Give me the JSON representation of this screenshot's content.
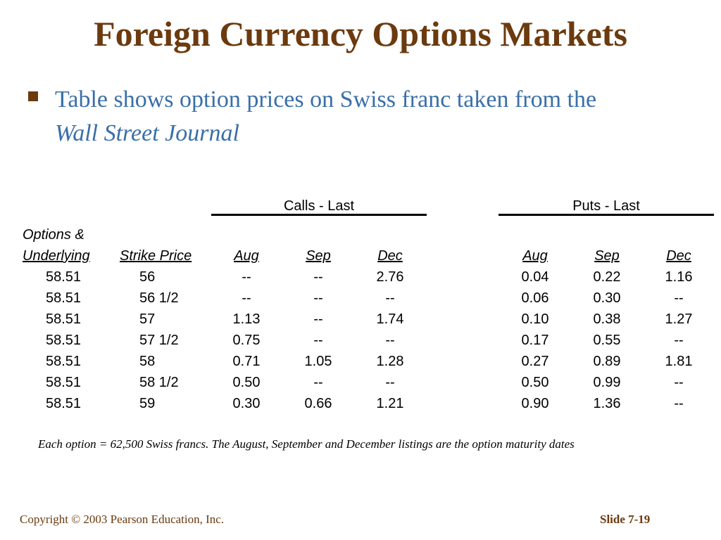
{
  "slide": {
    "title": "Foreign Currency Options Markets",
    "bullet_text": "Table shows option prices on Swiss franc taken from the",
    "bullet_text_italic": "Wall Street Journal"
  },
  "table": {
    "calls_group": "Calls - Last",
    "puts_group": "Puts - Last",
    "options_header_line1": "Options &",
    "options_header_line2": "Underlying",
    "strike_header": "Strike Price",
    "month_headers": [
      "Aug",
      "Sep",
      "Dec",
      "Aug",
      "Sep",
      "Dec"
    ],
    "rows": [
      [
        "58.51",
        "56",
        "--",
        "--",
        "2.76",
        "0.04",
        "0.22",
        "1.16"
      ],
      [
        "58.51",
        "56 1/2",
        "--",
        "--",
        "--",
        "0.06",
        "0.30",
        "--"
      ],
      [
        "58.51",
        "57",
        "1.13",
        "--",
        "1.74",
        "0.10",
        "0.38",
        "1.27"
      ],
      [
        "58.51",
        "57 1/2",
        "0.75",
        "--",
        "--",
        "0.17",
        "0.55",
        "--"
      ],
      [
        "58.51",
        "58",
        "0.71",
        "1.05",
        "1.28",
        "0.27",
        "0.89",
        "1.81"
      ],
      [
        "58.51",
        "58 1/2",
        "0.50",
        "--",
        "--",
        "0.50",
        "0.99",
        "--"
      ],
      [
        "58.51",
        "59",
        "0.30",
        "0.66",
        "1.21",
        "0.90",
        "1.36",
        "--"
      ]
    ],
    "note": "Each option = 62,500 Swiss francs.  The August, September and December listings are the option maturity dates"
  },
  "footer": {
    "copyright": "Copyright © 2003 Pearson Education, Inc.",
    "slide_number": "Slide 7-19"
  },
  "colors": {
    "title": "#6b3a0e",
    "bullet_text": "#3a6fa8",
    "bullet_marker": "#6b3a0e",
    "footer": "#6b3a0e"
  }
}
